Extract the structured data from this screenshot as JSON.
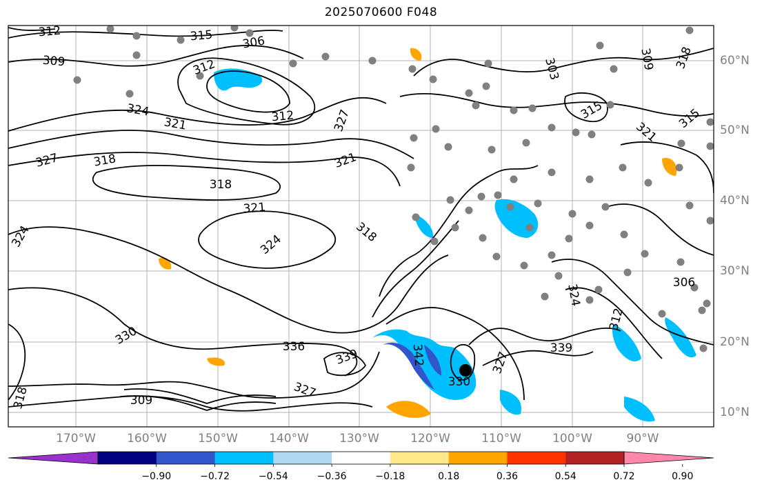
{
  "title": "2025070600 F048",
  "map": {
    "lon_labels": [
      "170°W",
      "160°W",
      "150°W",
      "140°W",
      "130°W",
      "120°W",
      "110°W",
      "100°W",
      "90°W"
    ],
    "lat_labels": [
      "60°N",
      "50°N",
      "40°N",
      "30°N",
      "20°N",
      "10°N"
    ],
    "contour_labels": [
      "312",
      "315",
      "309",
      "306",
      "312",
      "303",
      "312",
      "315",
      "324",
      "327",
      "321",
      "327",
      "318",
      "321",
      "318",
      "321",
      "318",
      "324",
      "330",
      "336",
      "339",
      "342",
      "327",
      "339",
      "330",
      "327",
      "309",
      "306",
      "312",
      "309",
      "318",
      "315",
      "321",
      "324",
      "318",
      "324"
    ],
    "contour_color": "#000000",
    "marker_color": "#808080",
    "storm_marker_color": "#000000"
  },
  "colorbar": {
    "colors": [
      "#9932cc",
      "#000080",
      "#3355cc",
      "#00bfff",
      "#add8f0",
      "#ffffff",
      "#ffe98a",
      "#ffa500",
      "#ff3300",
      "#b22222",
      "#ff88aa"
    ],
    "tick_labels": [
      "−0.90",
      "−0.72",
      "−0.54",
      "−0.36",
      "−0.18",
      "0.18",
      "0.36",
      "0.54",
      "0.72",
      "0.90"
    ]
  }
}
